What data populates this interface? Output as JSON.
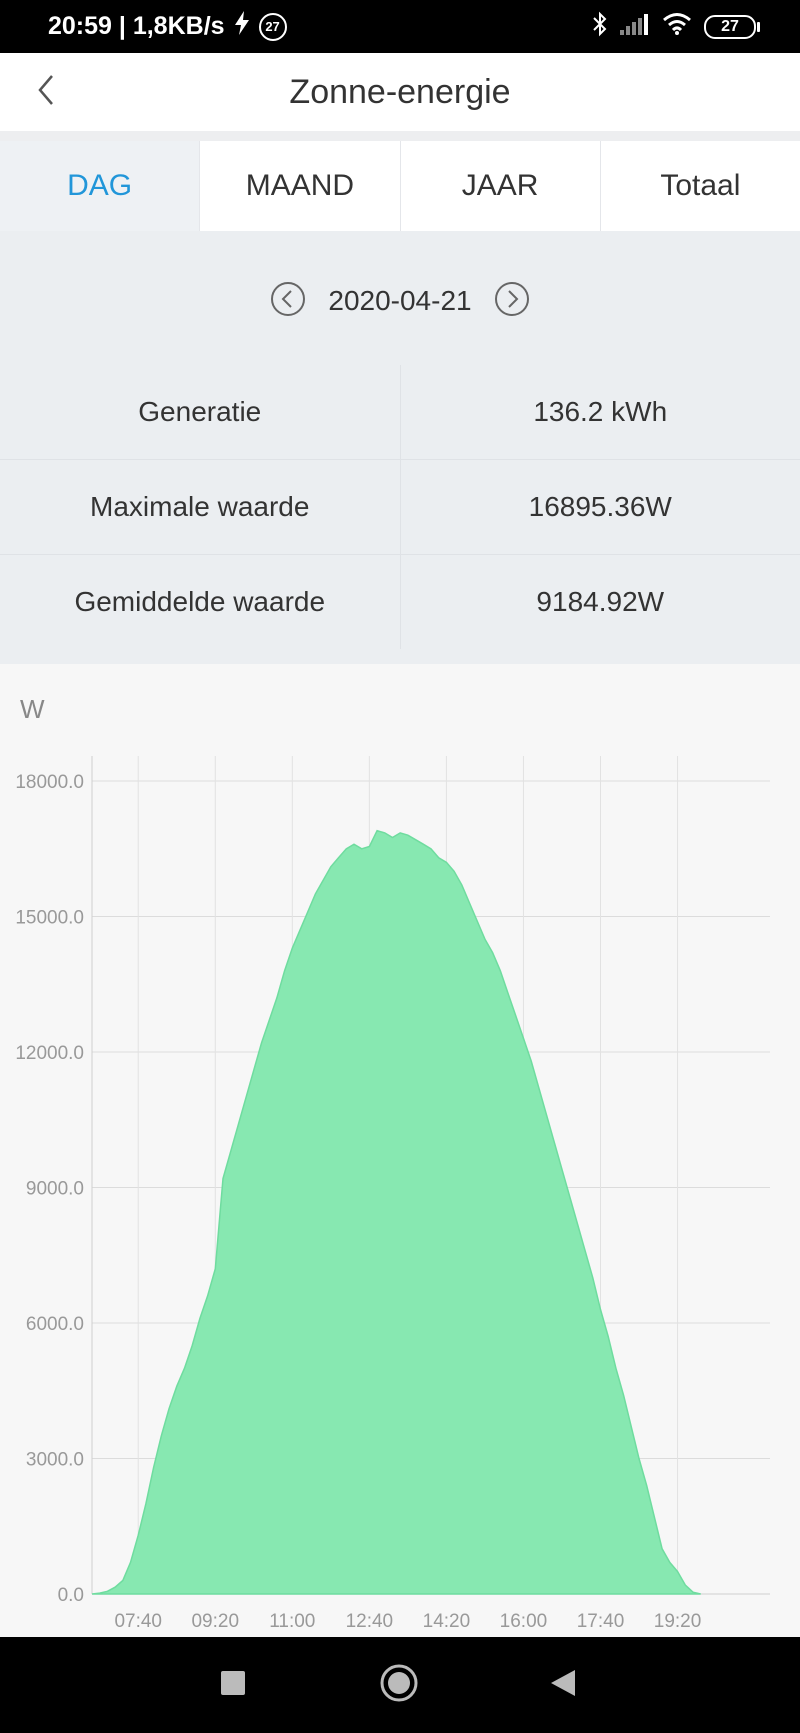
{
  "status_bar": {
    "time_speed": "20:59 | 1,8KB/s",
    "notification_badge": "27",
    "battery": "27",
    "icons": [
      "flash-icon",
      "bluetooth-icon",
      "signal-icon",
      "wifi-icon",
      "battery-icon"
    ]
  },
  "header": {
    "title": "Zonne-energie",
    "back_icon": "chevron-left-icon"
  },
  "tabs": [
    {
      "label": "DAG",
      "active": true
    },
    {
      "label": "MAAND",
      "active": false
    },
    {
      "label": "JAAR",
      "active": false
    },
    {
      "label": "Totaal",
      "active": false
    }
  ],
  "date_nav": {
    "date": "2020-04-21",
    "prev_icon": "circle-chevron-left-icon",
    "next_icon": "circle-chevron-right-icon"
  },
  "stats": [
    {
      "label": "Generatie",
      "value": "136.2 kWh"
    },
    {
      "label": "Maximale waarde",
      "value": "16895.36W"
    },
    {
      "label": "Gemiddelde waarde",
      "value": "9184.92W"
    }
  ],
  "colors": {
    "accent": "#2196d9",
    "area_fill": "#87e8b1",
    "area_stroke": "#6fdc9f"
  },
  "chart_data": {
    "type": "area",
    "unit_label": "W",
    "yticks": [
      "18000.0",
      "15000.0",
      "12000.0",
      "9000.0",
      "6000.0",
      "3000.0",
      "0.0"
    ],
    "ylim": [
      0,
      18000
    ],
    "xticks": [
      "07:40",
      "09:20",
      "11:00",
      "12:40",
      "14:20",
      "16:00",
      "17:40",
      "19:20"
    ],
    "xlim": [
      "06:40",
      "21:20"
    ],
    "grid": true,
    "series": [
      {
        "points": [
          [
            "06:40",
            0
          ],
          [
            "06:50",
            20
          ],
          [
            "07:00",
            60
          ],
          [
            "07:10",
            150
          ],
          [
            "07:20",
            300
          ],
          [
            "07:30",
            700
          ],
          [
            "07:40",
            1300
          ],
          [
            "07:50",
            2000
          ],
          [
            "08:00",
            2800
          ],
          [
            "08:10",
            3500
          ],
          [
            "08:20",
            4100
          ],
          [
            "08:30",
            4600
          ],
          [
            "08:40",
            5000
          ],
          [
            "08:50",
            5500
          ],
          [
            "09:00",
            6100
          ],
          [
            "09:10",
            6600
          ],
          [
            "09:20",
            7200
          ],
          [
            "09:30",
            9200
          ],
          [
            "09:40",
            9800
          ],
          [
            "09:50",
            10400
          ],
          [
            "10:00",
            11000
          ],
          [
            "10:10",
            11600
          ],
          [
            "10:20",
            12200
          ],
          [
            "10:30",
            12700
          ],
          [
            "10:40",
            13200
          ],
          [
            "10:50",
            13800
          ],
          [
            "11:00",
            14300
          ],
          [
            "11:10",
            14700
          ],
          [
            "11:20",
            15100
          ],
          [
            "11:30",
            15500
          ],
          [
            "11:40",
            15800
          ],
          [
            "11:50",
            16100
          ],
          [
            "12:00",
            16300
          ],
          [
            "12:10",
            16500
          ],
          [
            "12:20",
            16600
          ],
          [
            "12:30",
            16500
          ],
          [
            "12:40",
            16550
          ],
          [
            "12:50",
            16900
          ],
          [
            "13:00",
            16850
          ],
          [
            "13:10",
            16750
          ],
          [
            "13:20",
            16850
          ],
          [
            "13:30",
            16800
          ],
          [
            "13:40",
            16700
          ],
          [
            "13:50",
            16600
          ],
          [
            "14:00",
            16500
          ],
          [
            "14:10",
            16300
          ],
          [
            "14:20",
            16200
          ],
          [
            "14:30",
            16000
          ],
          [
            "14:40",
            15700
          ],
          [
            "14:50",
            15300
          ],
          [
            "15:00",
            14900
          ],
          [
            "15:10",
            14500
          ],
          [
            "15:20",
            14200
          ],
          [
            "15:30",
            13800
          ],
          [
            "15:40",
            13300
          ],
          [
            "15:50",
            12800
          ],
          [
            "16:00",
            12300
          ],
          [
            "16:10",
            11800
          ],
          [
            "16:20",
            11200
          ],
          [
            "16:30",
            10600
          ],
          [
            "16:40",
            10000
          ],
          [
            "16:50",
            9400
          ],
          [
            "17:00",
            8800
          ],
          [
            "17:10",
            8200
          ],
          [
            "17:20",
            7600
          ],
          [
            "17:30",
            7000
          ],
          [
            "17:40",
            6300
          ],
          [
            "17:50",
            5700
          ],
          [
            "18:00",
            5000
          ],
          [
            "18:10",
            4400
          ],
          [
            "18:20",
            3700
          ],
          [
            "18:30",
            3000
          ],
          [
            "18:40",
            2400
          ],
          [
            "18:50",
            1700
          ],
          [
            "19:00",
            1000
          ],
          [
            "19:10",
            700
          ],
          [
            "19:20",
            500
          ],
          [
            "19:30",
            200
          ],
          [
            "19:40",
            40
          ],
          [
            "19:50",
            0
          ]
        ]
      }
    ]
  },
  "nav_bar": {
    "icons": [
      "recents-square-icon",
      "home-circle-icon",
      "back-triangle-icon"
    ]
  }
}
